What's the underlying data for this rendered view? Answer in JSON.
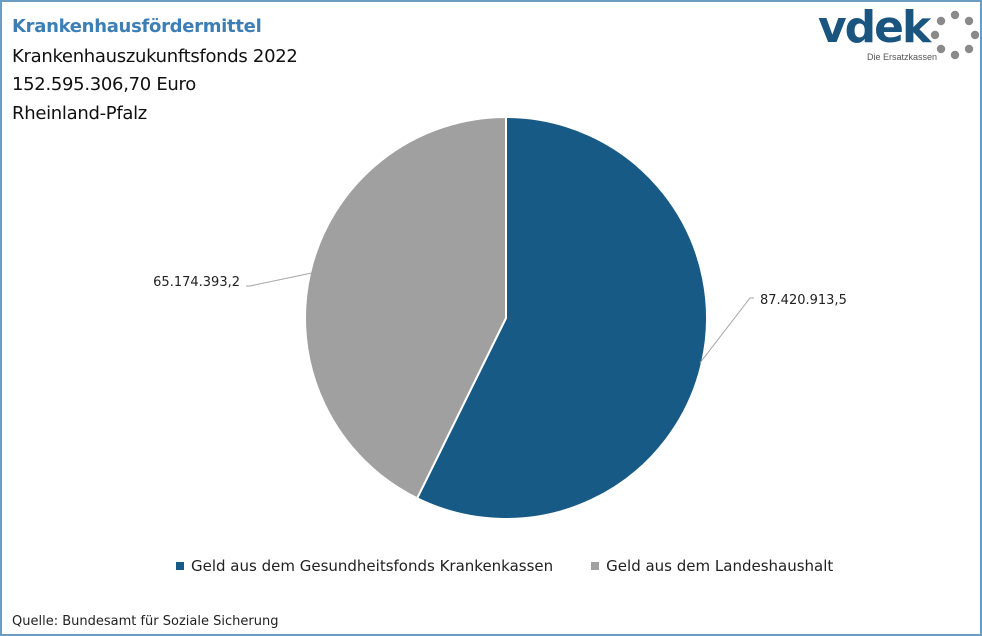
{
  "header": {
    "title": "Krankenhausfördermittel",
    "subtitle": "Krankenhauszukunftsfonds 2022",
    "total": "152.595.306,70 Euro",
    "region": "Rheinland-Pfalz"
  },
  "logo": {
    "wordmark": "vdek",
    "tagline": "Die Ersatzkassen"
  },
  "colors": {
    "accent": "#3d7fb5",
    "frame": "#6b9cc3",
    "logo": "#19557f"
  },
  "chart_data": {
    "type": "pie",
    "start": "12 o'clock",
    "direction": "clockwise",
    "categories": [
      "Geld aus dem Gesundheitsfonds Krankenkassen",
      "Geld aus dem Landeshaushalt"
    ],
    "values": [
      87420913.5,
      65174393.2
    ],
    "data_labels": [
      "87.420.913,5",
      "65.174.393,2"
    ],
    "colors": [
      "#175a85",
      "#a0a0a0"
    ],
    "legend_position": "bottom"
  },
  "legend": {
    "items": [
      {
        "label": "Geld aus dem Gesundheitsfonds Krankenkassen",
        "color": "#175a85"
      },
      {
        "label": "Geld aus dem Landeshaushalt",
        "color": "#a0a0a0"
      }
    ]
  },
  "footer": {
    "source": "Quelle: Bundesamt für Soziale Sicherung"
  }
}
